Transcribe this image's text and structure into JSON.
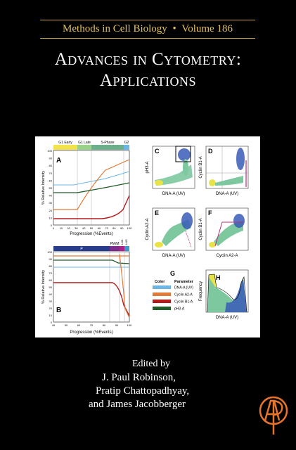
{
  "series": {
    "name": "Methods in Cell Biology",
    "separator": "•",
    "volume": "Volume 186"
  },
  "title": {
    "line1": "Advances in Cytometry:",
    "line2": "Applications"
  },
  "figure": {
    "panelA": {
      "letter": "A",
      "phases": [
        "G1 Early",
        "G1 Late",
        "S-Phase",
        "G2"
      ],
      "xlabel": "Progression (%Events)",
      "ylabel": "% Relative Intensity",
      "xticks": [
        "0",
        "10",
        "20",
        "30",
        "40",
        "50",
        "60",
        "70",
        "80",
        "90",
        "100"
      ],
      "yticks": [
        "100",
        "90",
        "80",
        "70",
        "60",
        "50",
        "40",
        "30",
        "20",
        "10",
        "0"
      ]
    },
    "panelB": {
      "letter": "B",
      "phases": [
        "P",
        "PM/M",
        "LM1",
        "LM2"
      ],
      "xlabel": "Progression (%Events)",
      "ylabel": "% Relative Intensity",
      "xticks": [
        "40",
        "50",
        "60",
        "70",
        "80",
        "90",
        "100"
      ],
      "yticks": [
        "100",
        "90",
        "80",
        "70",
        "60",
        "50",
        "40",
        "30",
        "20",
        "10",
        "0"
      ]
    },
    "panelC": {
      "letter": "C",
      "xlabel": "DNA-A (UV)",
      "ylabel": "pH3-A"
    },
    "panelD": {
      "letter": "D",
      "xlabel": "DNA-A (UV)",
      "ylabel": "Cyclin B1-A"
    },
    "panelE": {
      "letter": "E",
      "xlabel": "DNA-A (UV)",
      "ylabel": "Cyclin A2-A"
    },
    "panelF": {
      "letter": "F",
      "xlabel": "Cyclin A2-A",
      "ylabel": "Cyclin B1-A"
    },
    "panelG": {
      "letter": "G",
      "col_color": "Color",
      "col_param": "Parameter",
      "rows": [
        {
          "param": "DNA-A (UV)",
          "color": "#6cb6e6"
        },
        {
          "param": "Cyclin A2-A",
          "color": "#e07b39"
        },
        {
          "param": "Cyclin B1-A",
          "color": "#b31b1b"
        },
        {
          "param": "pH3-A",
          "color": "#1e5c2a"
        }
      ]
    },
    "panelH": {
      "letter": "H",
      "xlabel": "DNA-A (UV)",
      "ylabel": "Frequency"
    }
  },
  "editors": {
    "label": "Edited by",
    "names": [
      "J. Paul Robinson,",
      "Pratip Chattopadhyay,",
      "and  James Jacobberger"
    ]
  },
  "logo_icon": "elsevier-ap-icon",
  "colors": {
    "background": "#000000",
    "gold": "#e3c15a",
    "logo": "#e8742a"
  }
}
